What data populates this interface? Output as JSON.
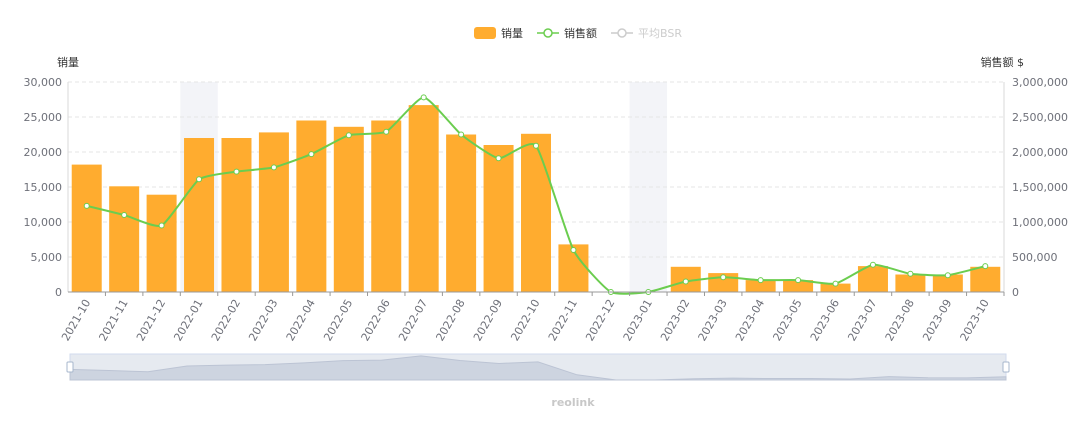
{
  "chart_data": {
    "type": "bar",
    "categories": [
      "2021-10",
      "2021-11",
      "2021-12",
      "2022-01",
      "2022-02",
      "2022-03",
      "2022-04",
      "2022-05",
      "2022-06",
      "2022-07",
      "2022-08",
      "2022-09",
      "2022-10",
      "2022-11",
      "2022-12",
      "2023-01",
      "2023-02",
      "2023-03",
      "2023-04",
      "2023-05",
      "2023-06",
      "2023-07",
      "2023-08",
      "2023-09",
      "2023-10"
    ],
    "y_left": {
      "label": "销量",
      "ticks": [
        "0",
        "5,000",
        "10,000",
        "15,000",
        "20,000",
        "25,000",
        "30,000"
      ],
      "range": [
        0,
        30000
      ]
    },
    "y_right": {
      "label": "销售额 $",
      "ticks": [
        "0",
        "500,000",
        "1,000,000",
        "1,500,000",
        "2,000,000",
        "2,500,000",
        "3,000,000"
      ],
      "range": [
        0,
        3000000
      ]
    },
    "legend": {
      "position": "top-center",
      "items": [
        {
          "name": "销量",
          "color": "#ffac2f",
          "active": true
        },
        {
          "name": "销售额",
          "color": "#6bcd4f",
          "active": true
        },
        {
          "name": "平均BSR",
          "color": "#cccccc",
          "active": false
        }
      ]
    },
    "series": [
      {
        "name": "销量",
        "type": "bar",
        "axis": "left",
        "color": "#ffac2f",
        "values": [
          18200,
          15100,
          13900,
          22000,
          22000,
          22800,
          24500,
          23600,
          24500,
          26700,
          22500,
          21000,
          22600,
          6800,
          0,
          0,
          3600,
          2700,
          1700,
          1700,
          1200,
          3700,
          2500,
          2500,
          3600
        ]
      },
      {
        "name": "销售额",
        "type": "line",
        "axis": "right",
        "color": "#6bcd4f",
        "values": [
          1230000,
          1100000,
          950000,
          1610000,
          1720000,
          1780000,
          1970000,
          2240000,
          2290000,
          2780000,
          2250000,
          1910000,
          2090000,
          600000,
          0,
          0,
          150000,
          210000,
          170000,
          170000,
          120000,
          390000,
          260000,
          240000,
          370000
        ]
      }
    ],
    "highlighted_categories": [
      "2022-01",
      "2023-01"
    ],
    "grid": true,
    "data_zoom": {
      "start": 0,
      "end": 100
    },
    "watermark": "reolink"
  }
}
